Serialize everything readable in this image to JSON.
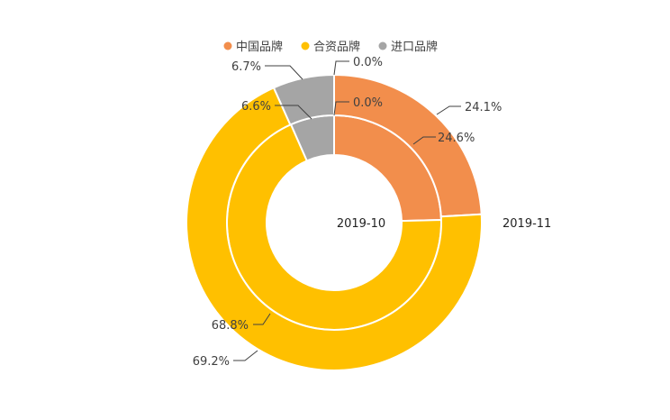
{
  "chart_data": {
    "type": "pie",
    "subtype": "concentric-donut",
    "colors": {
      "中国品牌": "#F28E4C",
      "合资品牌": "#FFC000",
      "进口品牌": "#A5A5A5"
    },
    "legend": {
      "placement": "top",
      "entries": [
        "中国品牌",
        "合资品牌",
        "进口品牌"
      ]
    },
    "rings": [
      {
        "name": "2019-10",
        "position": "inner",
        "slices": [
          {
            "category": "中国品牌",
            "value": 24.6,
            "label": "24.6%"
          },
          {
            "category": "合资品牌",
            "value": 68.8,
            "label": "68.8%"
          },
          {
            "category": "进口品牌",
            "value": 6.6,
            "label": "6.6%"
          }
        ],
        "zero_label": "0.0%"
      },
      {
        "name": "2019-11",
        "position": "outer",
        "slices": [
          {
            "category": "中国品牌",
            "value": 24.1,
            "label": "24.1%"
          },
          {
            "category": "合资品牌",
            "value": 69.2,
            "label": "69.2%"
          },
          {
            "category": "进口品牌",
            "value": 6.7,
            "label": "6.7%"
          }
        ],
        "zero_label": "0.0%"
      }
    ]
  }
}
